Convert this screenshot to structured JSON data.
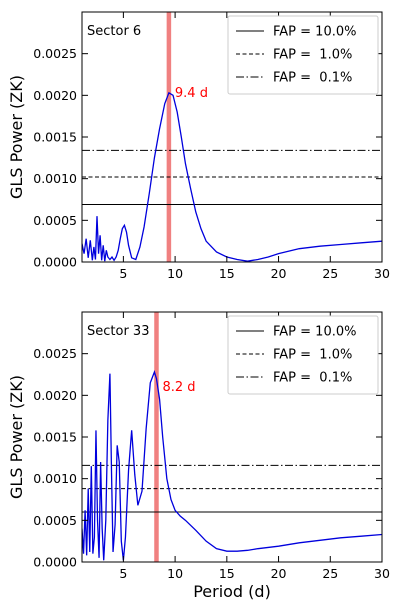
{
  "figure": {
    "xlabel": "Period (d)"
  },
  "chart_data": [
    {
      "type": "line",
      "panel_label": "Sector 6",
      "xlabel": "",
      "ylabel": "GLS Power (ZK)",
      "xlim": [
        1,
        30
      ],
      "ylim": [
        0,
        0.003
      ],
      "xticks": [
        5,
        10,
        15,
        20,
        25,
        30
      ],
      "xtick_labels": [
        "5",
        "10",
        "15",
        "20",
        "25",
        "30"
      ],
      "yticks": [
        0,
        0.0005,
        0.001,
        0.0015,
        0.002,
        0.0025
      ],
      "ytick_labels": [
        "0.0000",
        "0.0005",
        "0.0010",
        "0.0015",
        "0.0020",
        "0.0025"
      ],
      "grid": false,
      "legend_position": "top-right",
      "periodogram_color": "#0000dd",
      "series": [
        {
          "x": [
            1.0,
            1.2,
            1.4,
            1.6,
            1.8,
            2.0,
            2.15,
            2.3,
            2.45,
            2.6,
            2.75,
            2.9,
            3.05,
            3.2,
            3.35,
            3.5,
            3.7,
            3.9,
            4.1,
            4.3,
            4.5,
            4.7,
            4.9,
            5.1,
            5.3,
            5.5,
            5.8,
            6.2,
            6.6,
            7.0,
            7.5,
            8.0,
            8.5,
            9.0,
            9.4,
            9.8,
            10.2,
            10.6,
            11.0,
            11.5,
            12.0,
            12.5,
            13.0,
            14.0,
            15.0,
            16.0,
            17.0,
            18.0,
            19.0,
            20.0,
            22.0,
            24.0,
            26.0,
            28.0,
            30.0
          ],
          "y": [
            0.00022,
            0.0001,
            0.00028,
            5e-05,
            0.00026,
            2e-05,
            0.00018,
            3e-05,
            0.00055,
            0.0001,
            0.00032,
            2e-05,
            0.0002,
            1e-05,
            0.00014,
            6e-05,
            3e-05,
            6e-05,
            2e-05,
            6e-05,
            0.00014,
            0.00028,
            0.0004,
            0.00044,
            0.00036,
            0.0002,
            5e-05,
            3e-05,
            0.00018,
            0.00042,
            0.00082,
            0.00125,
            0.0016,
            0.0019,
            0.00203,
            0.002,
            0.0018,
            0.0015,
            0.00118,
            0.00088,
            0.0006,
            0.0004,
            0.00025,
            0.00012,
            6e-05,
            3e-05,
            1e-05,
            3e-05,
            6e-05,
            0.0001,
            0.00016,
            0.00019,
            0.00021,
            0.00023,
            0.00025
          ]
        }
      ],
      "fap_lines": [
        {
          "label": "FAP = 10.0%",
          "value": 0.00069,
          "style": "solid"
        },
        {
          "label": "FAP =  1.0%",
          "value": 0.00102,
          "style": "dashed"
        },
        {
          "label": "FAP =  0.1%",
          "value": 0.00134,
          "style": "dashdot"
        }
      ],
      "peak_marker": {
        "x": 9.4,
        "label": "9.4 d",
        "color": "#ff0000",
        "band_color": "#f08080"
      }
    },
    {
      "type": "line",
      "panel_label": "Sector 33",
      "xlabel": "Period (d)",
      "ylabel": "GLS Power (ZK)",
      "xlim": [
        1,
        30
      ],
      "ylim": [
        0,
        0.003
      ],
      "xticks": [
        5,
        10,
        15,
        20,
        25,
        30
      ],
      "xtick_labels": [
        "5",
        "10",
        "15",
        "20",
        "25",
        "30"
      ],
      "yticks": [
        0,
        0.0005,
        0.001,
        0.0015,
        0.002,
        0.0025
      ],
      "ytick_labels": [
        "0.0000",
        "0.0005",
        "0.0010",
        "0.0015",
        "0.0020",
        "0.0025"
      ],
      "grid": false,
      "legend_position": "top-right",
      "periodogram_color": "#0000dd",
      "series": [
        {
          "x": [
            1.0,
            1.15,
            1.3,
            1.45,
            1.6,
            1.75,
            1.9,
            2.05,
            2.2,
            2.35,
            2.5,
            2.65,
            2.8,
            2.95,
            3.1,
            3.3,
            3.5,
            3.7,
            3.85,
            4.0,
            4.2,
            4.4,
            4.6,
            4.8,
            5.0,
            5.2,
            5.5,
            5.8,
            6.1,
            6.4,
            6.8,
            7.2,
            7.6,
            8.0,
            8.2,
            8.5,
            8.8,
            9.2,
            9.6,
            10.0,
            10.5,
            11.0,
            11.5,
            12.0,
            13.0,
            14.0,
            15.0,
            16.0,
            17.0,
            18.0,
            20.0,
            22.0,
            24.0,
            26.0,
            28.0,
            30.0
          ],
          "y": [
            0.0004,
            0.0001,
            0.00062,
            8e-05,
            0.00088,
            0.00012,
            0.00115,
            0.0001,
            0.0003,
            0.00158,
            0.0005,
            5e-05,
            0.0012,
            0.0004,
            2e-05,
            0.0005,
            0.0017,
            0.00226,
            0.0011,
            0.00012,
            0.00045,
            0.0014,
            0.0012,
            0.00025,
            2e-05,
            0.0003,
            0.0011,
            0.00158,
            0.00105,
            0.00068,
            0.00085,
            0.0016,
            0.00215,
            0.00228,
            0.0022,
            0.00195,
            0.0015,
            0.001,
            0.00075,
            0.00062,
            0.00055,
            0.0005,
            0.00044,
            0.00038,
            0.00025,
            0.00016,
            0.00013,
            0.00013,
            0.00014,
            0.00016,
            0.00019,
            0.00023,
            0.00026,
            0.00029,
            0.00031,
            0.00033
          ]
        }
      ],
      "fap_lines": [
        {
          "label": "FAP = 10.0%",
          "value": 0.0006,
          "style": "solid"
        },
        {
          "label": "FAP =  1.0%",
          "value": 0.00088,
          "style": "dashed"
        },
        {
          "label": "FAP =  0.1%",
          "value": 0.00116,
          "style": "dashdot"
        }
      ],
      "peak_marker": {
        "x": 8.2,
        "label": "8.2 d",
        "color": "#ff0000",
        "band_color": "#f08080"
      }
    }
  ]
}
